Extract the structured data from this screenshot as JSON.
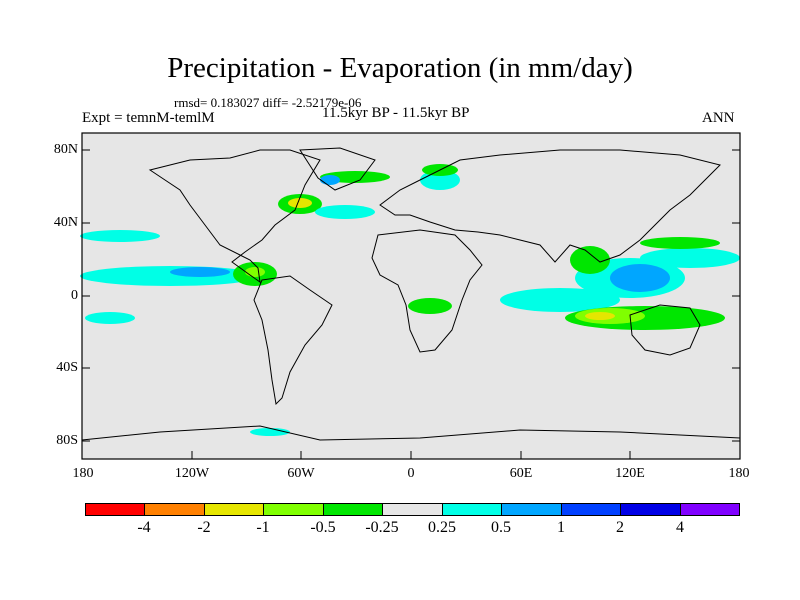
{
  "title": "Precipitation - Evaporation (in mm/day)",
  "stats": "rmsd= 0.183027 diff= -2.52179e-06",
  "experiment": "Expt = temnM-temlM",
  "period": "11.5kyr BP - 11.5kyr BP",
  "season": "ANN",
  "lat_labels": [
    "80N",
    "40N",
    "0",
    "40S",
    "80S"
  ],
  "lon_labels": [
    "180",
    "120W",
    "60W",
    "0",
    "60E",
    "120E",
    "180"
  ],
  "colorbar": {
    "labels": [
      "-4",
      "-2",
      "-1",
      "-0.5",
      "-0.25",
      "0.25",
      "0.5",
      "1",
      "2",
      "4"
    ],
    "colors": [
      "#ff0000",
      "#ff8000",
      "#e6e600",
      "#80ff00",
      "#00e600",
      "#e6e6e6",
      "#00ffe6",
      "#00a6ff",
      "#0040ff",
      "#0000e6",
      "#8000ff"
    ]
  },
  "colors": {
    "ocean_bg": "#e6e6e6",
    "coast": "#000000"
  }
}
